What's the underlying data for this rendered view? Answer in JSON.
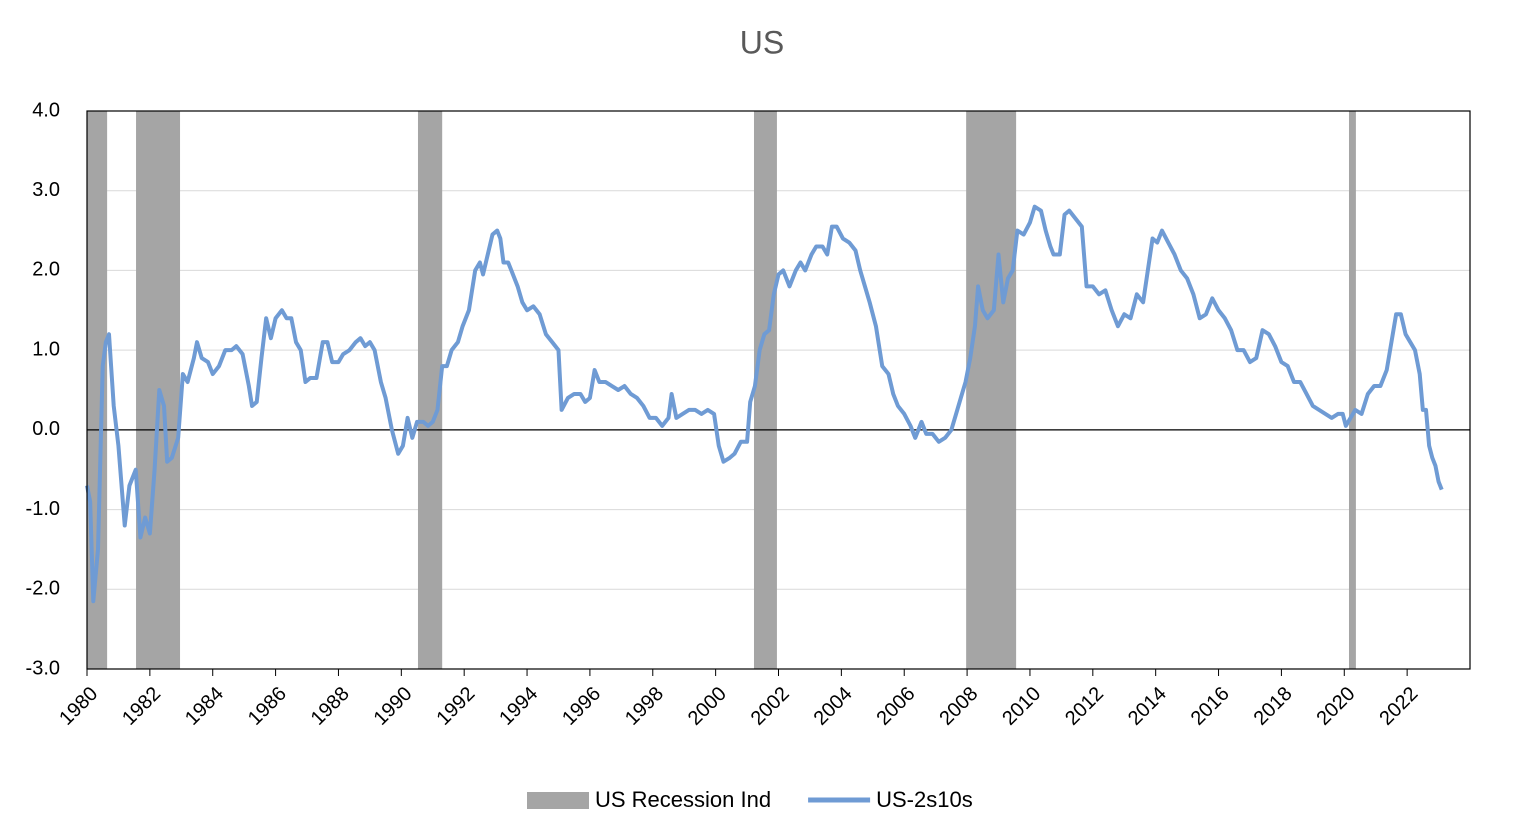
{
  "chart_data": {
    "type": "line",
    "title": "US",
    "xlim": [
      1980,
      2024
    ],
    "xticks": [
      1980,
      1982,
      1984,
      1986,
      1988,
      1990,
      1992,
      1994,
      1996,
      1998,
      2000,
      2002,
      2004,
      2006,
      2008,
      2010,
      2012,
      2014,
      2016,
      2018,
      2020,
      2022
    ],
    "ylim": [
      -3,
      4
    ],
    "yticks": [
      {
        "value": -3,
        "label": "-3.0"
      },
      {
        "value": -2,
        "label": "-2.0"
      },
      {
        "value": -1,
        "label": "-1.0"
      },
      {
        "value": 0,
        "label": "0.0"
      },
      {
        "value": 1,
        "label": "1.0"
      },
      {
        "value": 2,
        "label": "2.0"
      },
      {
        "value": 3,
        "label": "3.0"
      },
      {
        "value": 4,
        "label": "4.0"
      }
    ],
    "grid": true,
    "legend": "bottom",
    "series": [
      {
        "name": "US Recession Ind",
        "type": "band",
        "color": "#a5a5a5",
        "ranges": [
          [
            1980.0,
            1980.64
          ],
          [
            1981.56,
            1982.96
          ],
          [
            1990.53,
            1991.3
          ],
          [
            2001.22,
            2001.95
          ],
          [
            2007.97,
            2009.56
          ],
          [
            2020.15,
            2020.37
          ]
        ]
      },
      {
        "name": "US-2s10s",
        "type": "line",
        "color": "#6f9bd4",
        "x": [
          1980.0,
          1980.1,
          1980.2,
          1980.35,
          1980.5,
          1980.6,
          1980.7,
          1980.85,
          1981.0,
          1981.2,
          1981.35,
          1981.55,
          1981.7,
          1981.85,
          1982.0,
          1982.15,
          1982.3,
          1982.45,
          1982.55,
          1982.7,
          1982.9,
          1983.05,
          1983.2,
          1983.4,
          1983.5,
          1983.65,
          1983.85,
          1984.0,
          1984.2,
          1984.4,
          1984.6,
          1984.75,
          1984.95,
          1985.15,
          1985.25,
          1985.4,
          1985.55,
          1985.7,
          1985.85,
          1986.0,
          1986.2,
          1986.35,
          1986.5,
          1986.65,
          1986.8,
          1986.95,
          1987.1,
          1987.3,
          1987.5,
          1987.65,
          1987.8,
          1988.0,
          1988.15,
          1988.35,
          1988.55,
          1988.7,
          1988.85,
          1989.0,
          1989.15,
          1989.35,
          1989.5,
          1989.7,
          1989.9,
          1990.05,
          1990.2,
          1990.35,
          1990.5,
          1990.7,
          1990.85,
          1991.0,
          1991.15,
          1991.3,
          1991.45,
          1991.6,
          1991.8,
          1991.95,
          1992.15,
          1992.35,
          1992.5,
          1992.6,
          1992.75,
          1992.9,
          1993.05,
          1993.15,
          1993.25,
          1993.4,
          1993.55,
          1993.7,
          1993.85,
          1994.0,
          1994.2,
          1994.4,
          1994.6,
          1994.8,
          1995.0,
          1995.1,
          1995.3,
          1995.5,
          1995.7,
          1995.85,
          1996.0,
          1996.15,
          1996.3,
          1996.5,
          1996.7,
          1996.9,
          1997.1,
          1997.3,
          1997.5,
          1997.7,
          1997.9,
          1998.1,
          1998.3,
          1998.5,
          1998.6,
          1998.75,
          1998.95,
          1999.15,
          1999.35,
          1999.55,
          1999.75,
          1999.95,
          2000.1,
          2000.25,
          2000.45,
          2000.6,
          2000.8,
          2001.0,
          2001.1,
          2001.25,
          2001.4,
          2001.55,
          2001.7,
          2001.85,
          2002.0,
          2002.15,
          2002.35,
          2002.55,
          2002.7,
          2002.85,
          2003.05,
          2003.2,
          2003.4,
          2003.55,
          2003.7,
          2003.85,
          2004.05,
          2004.25,
          2004.45,
          2004.6,
          2004.75,
          2004.9,
          2005.1,
          2005.3,
          2005.5,
          2005.65,
          2005.8,
          2006.0,
          2006.2,
          2006.35,
          2006.55,
          2006.7,
          2006.9,
          2007.1,
          2007.3,
          2007.5,
          2007.65,
          2007.8,
          2007.95,
          2008.1,
          2008.25,
          2008.35,
          2008.5,
          2008.65,
          2008.85,
          2009.0,
          2009.15,
          2009.3,
          2009.45,
          2009.6,
          2009.8,
          2010.0,
          2010.15,
          2010.35,
          2010.5,
          2010.65,
          2010.75,
          2010.95,
          2011.1,
          2011.25,
          2011.45,
          2011.65,
          2011.8,
          2012.0,
          2012.2,
          2012.4,
          2012.6,
          2012.8,
          2013.0,
          2013.2,
          2013.4,
          2013.6,
          2013.75,
          2013.9,
          2014.05,
          2014.2,
          2014.4,
          2014.6,
          2014.8,
          2015.0,
          2015.2,
          2015.4,
          2015.6,
          2015.8,
          2016.0,
          2016.2,
          2016.4,
          2016.6,
          2016.8,
          2017.0,
          2017.2,
          2017.4,
          2017.6,
          2017.8,
          2018.0,
          2018.2,
          2018.4,
          2018.6,
          2018.8,
          2019.0,
          2019.2,
          2019.4,
          2019.6,
          2019.8,
          2019.95,
          2020.05,
          2020.2,
          2020.35,
          2020.55,
          2020.75,
          2020.95,
          2021.15,
          2021.35,
          2021.5,
          2021.65,
          2021.8,
          2021.95,
          2022.1,
          2022.25,
          2022.4,
          2022.5,
          2022.6,
          2022.7,
          2022.8,
          2022.9,
          2023.0,
          2023.1
        ],
        "values": [
          -0.7,
          -0.9,
          -2.15,
          -1.5,
          0.8,
          1.1,
          1.2,
          0.3,
          -0.2,
          -1.2,
          -0.7,
          -0.5,
          -1.35,
          -1.1,
          -1.3,
          -0.5,
          0.5,
          0.3,
          -0.4,
          -0.35,
          -0.1,
          0.7,
          0.6,
          0.9,
          1.1,
          0.9,
          0.85,
          0.7,
          0.8,
          1.0,
          1.0,
          1.05,
          0.95,
          0.55,
          0.3,
          0.35,
          0.9,
          1.4,
          1.15,
          1.4,
          1.5,
          1.4,
          1.4,
          1.1,
          1.0,
          0.6,
          0.65,
          0.65,
          1.1,
          1.1,
          0.85,
          0.85,
          0.95,
          1.0,
          1.1,
          1.15,
          1.05,
          1.1,
          1.0,
          0.6,
          0.4,
          0.0,
          -0.3,
          -0.2,
          0.15,
          -0.1,
          0.1,
          0.1,
          0.05,
          0.1,
          0.25,
          0.8,
          0.8,
          1.0,
          1.1,
          1.3,
          1.5,
          2.0,
          2.1,
          1.95,
          2.2,
          2.45,
          2.5,
          2.4,
          2.1,
          2.1,
          1.95,
          1.8,
          1.6,
          1.5,
          1.55,
          1.45,
          1.2,
          1.1,
          1.0,
          0.25,
          0.4,
          0.45,
          0.45,
          0.35,
          0.4,
          0.75,
          0.6,
          0.6,
          0.55,
          0.5,
          0.55,
          0.45,
          0.4,
          0.3,
          0.15,
          0.15,
          0.05,
          0.15,
          0.45,
          0.15,
          0.2,
          0.25,
          0.25,
          0.2,
          0.25,
          0.2,
          -0.2,
          -0.4,
          -0.35,
          -0.3,
          -0.15,
          -0.15,
          0.35,
          0.55,
          1.0,
          1.2,
          1.25,
          1.7,
          1.95,
          2.0,
          1.8,
          2.0,
          2.1,
          2.0,
          2.2,
          2.3,
          2.3,
          2.2,
          2.55,
          2.55,
          2.4,
          2.35,
          2.25,
          2.0,
          1.8,
          1.6,
          1.3,
          0.8,
          0.7,
          0.45,
          0.3,
          0.2,
          0.05,
          -0.1,
          0.1,
          -0.05,
          -0.05,
          -0.15,
          -0.1,
          0.0,
          0.2,
          0.4,
          0.6,
          0.9,
          1.3,
          1.8,
          1.5,
          1.4,
          1.5,
          2.2,
          1.6,
          1.9,
          2.0,
          2.5,
          2.45,
          2.6,
          2.8,
          2.75,
          2.5,
          2.3,
          2.2,
          2.2,
          2.7,
          2.75,
          2.65,
          2.55,
          1.8,
          1.8,
          1.7,
          1.75,
          1.5,
          1.3,
          1.45,
          1.4,
          1.7,
          1.6,
          2.0,
          2.4,
          2.35,
          2.5,
          2.35,
          2.2,
          2.0,
          1.9,
          1.7,
          1.4,
          1.45,
          1.65,
          1.5,
          1.4,
          1.25,
          1.0,
          1.0,
          0.85,
          0.9,
          1.25,
          1.2,
          1.05,
          0.85,
          0.8,
          0.6,
          0.6,
          0.45,
          0.3,
          0.25,
          0.2,
          0.15,
          0.2,
          0.2,
          0.05,
          0.15,
          0.25,
          0.2,
          0.45,
          0.55,
          0.55,
          0.75,
          1.1,
          1.45,
          1.45,
          1.2,
          1.1,
          1.0,
          0.7,
          0.25,
          0.25,
          -0.2,
          -0.35,
          -0.45,
          -0.65,
          -0.75
        ]
      }
    ]
  }
}
